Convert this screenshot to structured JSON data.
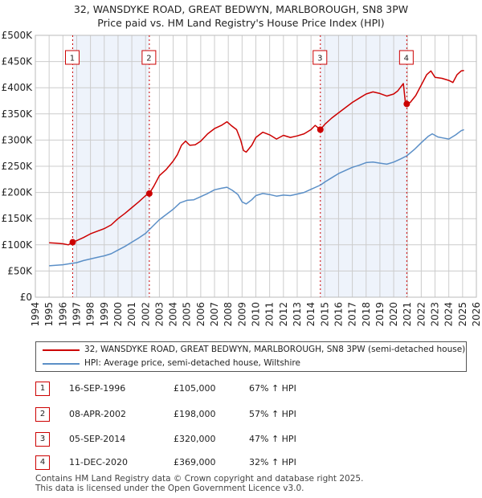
{
  "title_line1": "32, WANSDYKE ROAD, GREAT BEDWYN, MARLBOROUGH, SN8 3PW",
  "title_line2": "Price paid vs. HM Land Registry's House Price Index (HPI)",
  "colors": {
    "property": "#cc0000",
    "hpi": "#5b8fc7",
    "shade": "#eef3fb",
    "grid": "#cccccc",
    "vline": "#cc0000"
  },
  "chart_data": {
    "type": "line",
    "title": "Price paid vs. HM Land Registry's House Price Index (HPI)",
    "xlabel": "",
    "ylabel": "",
    "xlim": [
      1994,
      2026
    ],
    "ylim": [
      0,
      500000
    ],
    "x_ticks": [
      "1994",
      "1995",
      "1996",
      "1997",
      "1998",
      "1999",
      "2000",
      "2001",
      "2002",
      "2003",
      "2004",
      "2005",
      "2006",
      "2007",
      "2008",
      "2009",
      "2010",
      "2011",
      "2012",
      "2013",
      "2014",
      "2015",
      "2016",
      "2017",
      "2018",
      "2019",
      "2020",
      "2021",
      "2022",
      "2023",
      "2024",
      "2025",
      "2026"
    ],
    "y_ticks": [
      {
        "value": 0,
        "label": "£0"
      },
      {
        "value": 50000,
        "label": "£50K"
      },
      {
        "value": 100000,
        "label": "£100K"
      },
      {
        "value": 150000,
        "label": "£150K"
      },
      {
        "value": 200000,
        "label": "£200K"
      },
      {
        "value": 250000,
        "label": "£250K"
      },
      {
        "value": 300000,
        "label": "£300K"
      },
      {
        "value": 350000,
        "label": "£350K"
      },
      {
        "value": 400000,
        "label": "£400K"
      },
      {
        "value": 450000,
        "label": "£450K"
      },
      {
        "value": 500000,
        "label": "£500K"
      }
    ],
    "shaded_spans": [
      [
        1996.71,
        2002.27
      ],
      [
        2014.68,
        2020.95
      ]
    ],
    "series": [
      {
        "name": "32, WANSDYKE ROAD, GREAT BEDWYN, MARLBOROUGH, SN8 3PW (semi-detached house)",
        "color": "#cc0000",
        "points": [
          [
            1995.0,
            104000
          ],
          [
            1995.5,
            103000
          ],
          [
            1996.0,
            102000
          ],
          [
            1996.4,
            100000
          ],
          [
            1996.71,
            105000
          ],
          [
            1997.0,
            108000
          ],
          [
            1997.5,
            114000
          ],
          [
            1998.0,
            121000
          ],
          [
            1998.5,
            126000
          ],
          [
            1999.0,
            131000
          ],
          [
            1999.5,
            138000
          ],
          [
            2000.0,
            150000
          ],
          [
            2000.5,
            160000
          ],
          [
            2001.0,
            171000
          ],
          [
            2001.5,
            182000
          ],
          [
            2002.0,
            194000
          ],
          [
            2002.27,
            198000
          ],
          [
            2002.6,
            212000
          ],
          [
            2003.0,
            232000
          ],
          [
            2003.5,
            244000
          ],
          [
            2004.0,
            260000
          ],
          [
            2004.3,
            272000
          ],
          [
            2004.6,
            290000
          ],
          [
            2004.9,
            298000
          ],
          [
            2005.2,
            290000
          ],
          [
            2005.6,
            291000
          ],
          [
            2006.0,
            298000
          ],
          [
            2006.5,
            312000
          ],
          [
            2007.0,
            322000
          ],
          [
            2007.5,
            328000
          ],
          [
            2007.9,
            335000
          ],
          [
            2008.2,
            328000
          ],
          [
            2008.6,
            320000
          ],
          [
            2008.9,
            300000
          ],
          [
            2009.1,
            280000
          ],
          [
            2009.3,
            277000
          ],
          [
            2009.7,
            290000
          ],
          [
            2010.0,
            305000
          ],
          [
            2010.5,
            315000
          ],
          [
            2011.0,
            310000
          ],
          [
            2011.5,
            302000
          ],
          [
            2012.0,
            309000
          ],
          [
            2012.5,
            305000
          ],
          [
            2013.0,
            308000
          ],
          [
            2013.5,
            312000
          ],
          [
            2014.0,
            320000
          ],
          [
            2014.3,
            328000
          ],
          [
            2014.68,
            320000
          ],
          [
            2015.0,
            330000
          ],
          [
            2015.5,
            342000
          ],
          [
            2016.0,
            352000
          ],
          [
            2016.5,
            362000
          ],
          [
            2017.0,
            372000
          ],
          [
            2017.5,
            380000
          ],
          [
            2018.0,
            388000
          ],
          [
            2018.5,
            392000
          ],
          [
            2019.0,
            389000
          ],
          [
            2019.5,
            384000
          ],
          [
            2020.0,
            388000
          ],
          [
            2020.3,
            394000
          ],
          [
            2020.7,
            408000
          ],
          [
            2020.85,
            372000
          ],
          [
            2020.95,
            369000
          ],
          [
            2021.2,
            372000
          ],
          [
            2021.6,
            385000
          ],
          [
            2022.0,
            405000
          ],
          [
            2022.4,
            425000
          ],
          [
            2022.7,
            432000
          ],
          [
            2023.0,
            420000
          ],
          [
            2023.5,
            418000
          ],
          [
            2024.0,
            414000
          ],
          [
            2024.3,
            410000
          ],
          [
            2024.6,
            425000
          ],
          [
            2024.9,
            432000
          ],
          [
            2025.1,
            433000
          ]
        ]
      },
      {
        "name": "HPI: Average price, semi-detached house, Wiltshire",
        "color": "#5b8fc7",
        "points": [
          [
            1995.0,
            60000
          ],
          [
            1995.5,
            61000
          ],
          [
            1996.0,
            62000
          ],
          [
            1996.5,
            64000
          ],
          [
            1997.0,
            66000
          ],
          [
            1997.5,
            70000
          ],
          [
            1998.0,
            73000
          ],
          [
            1998.5,
            76000
          ],
          [
            1999.0,
            79000
          ],
          [
            1999.5,
            83000
          ],
          [
            2000.0,
            90000
          ],
          [
            2000.5,
            97000
          ],
          [
            2001.0,
            105000
          ],
          [
            2001.5,
            113000
          ],
          [
            2002.0,
            122000
          ],
          [
            2002.5,
            135000
          ],
          [
            2003.0,
            148000
          ],
          [
            2003.5,
            158000
          ],
          [
            2004.0,
            168000
          ],
          [
            2004.5,
            180000
          ],
          [
            2005.0,
            185000
          ],
          [
            2005.5,
            186000
          ],
          [
            2006.0,
            192000
          ],
          [
            2006.5,
            198000
          ],
          [
            2007.0,
            205000
          ],
          [
            2007.5,
            208000
          ],
          [
            2007.9,
            210000
          ],
          [
            2008.3,
            204000
          ],
          [
            2008.7,
            196000
          ],
          [
            2009.0,
            182000
          ],
          [
            2009.3,
            178000
          ],
          [
            2009.7,
            186000
          ],
          [
            2010.0,
            194000
          ],
          [
            2010.5,
            198000
          ],
          [
            2011.0,
            196000
          ],
          [
            2011.5,
            193000
          ],
          [
            2012.0,
            195000
          ],
          [
            2012.5,
            194000
          ],
          [
            2013.0,
            197000
          ],
          [
            2013.5,
            200000
          ],
          [
            2014.0,
            206000
          ],
          [
            2014.68,
            214000
          ],
          [
            2015.0,
            220000
          ],
          [
            2015.5,
            228000
          ],
          [
            2016.0,
            236000
          ],
          [
            2016.5,
            242000
          ],
          [
            2017.0,
            248000
          ],
          [
            2017.5,
            252000
          ],
          [
            2018.0,
            257000
          ],
          [
            2018.5,
            258000
          ],
          [
            2019.0,
            256000
          ],
          [
            2019.5,
            254000
          ],
          [
            2020.0,
            258000
          ],
          [
            2020.5,
            264000
          ],
          [
            2020.95,
            270000
          ],
          [
            2021.5,
            282000
          ],
          [
            2022.0,
            295000
          ],
          [
            2022.5,
            307000
          ],
          [
            2022.8,
            312000
          ],
          [
            2023.2,
            306000
          ],
          [
            2023.6,
            304000
          ],
          [
            2024.0,
            302000
          ],
          [
            2024.5,
            310000
          ],
          [
            2024.9,
            318000
          ],
          [
            2025.1,
            320000
          ]
        ]
      }
    ],
    "sales": [
      {
        "label": "1",
        "x": 1996.71,
        "price": 105000
      },
      {
        "label": "2",
        "x": 2002.27,
        "price": 198000
      },
      {
        "label": "3",
        "x": 2014.68,
        "price": 320000
      },
      {
        "label": "4",
        "x": 2020.95,
        "price": 369000
      }
    ]
  },
  "legend": {
    "property": "32, WANSDYKE ROAD, GREAT BEDWYN, MARLBOROUGH, SN8 3PW (semi-detached house)",
    "hpi": "HPI: Average price, semi-detached house, Wiltshire"
  },
  "sales_table": [
    {
      "num": "1",
      "date": "16-SEP-1996",
      "price": "£105,000",
      "hpi": "67% ↑ HPI"
    },
    {
      "num": "2",
      "date": "08-APR-2002",
      "price": "£198,000",
      "hpi": "57% ↑ HPI"
    },
    {
      "num": "3",
      "date": "05-SEP-2014",
      "price": "£320,000",
      "hpi": "47% ↑ HPI"
    },
    {
      "num": "4",
      "date": "11-DEC-2020",
      "price": "£369,000",
      "hpi": "32% ↑ HPI"
    }
  ],
  "footer": {
    "line1": "Contains HM Land Registry data © Crown copyright and database right 2025.",
    "line2": "This data is licensed under the Open Government Licence v3.0."
  }
}
